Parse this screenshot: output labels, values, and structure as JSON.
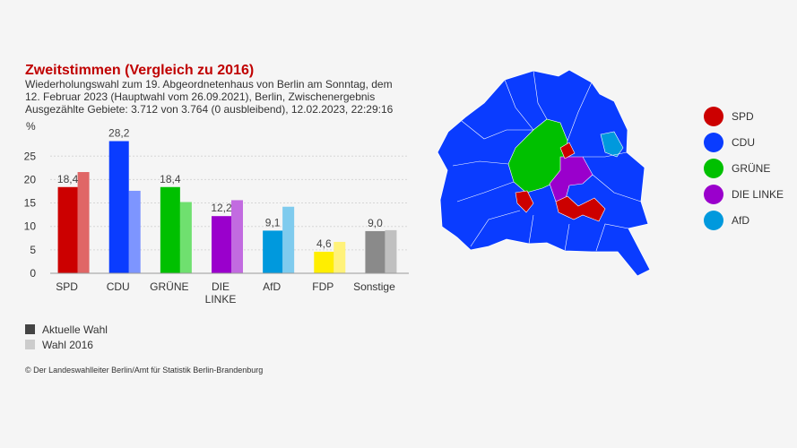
{
  "title": "Zweitstimmen (Vergleich zu 2016)",
  "subtitle_lines": [
    "Wiederholungswahl zum 19. Abgeordnetenhaus von Berlin am Sonntag, dem",
    "12. Februar 2023 (Hauptwahl vom 26.09.2021), Berlin, Zwischenergebnis",
    "Ausgezählte Gebiete: 3.712 von 3.764 (0 ausbleibend), 12.02.2023, 22:29:16"
  ],
  "chart_data": {
    "type": "bar",
    "ylabel": "%",
    "ylim": [
      0,
      30
    ],
    "yticks": [
      0,
      5,
      10,
      15,
      20,
      25
    ],
    "grid": true,
    "categories": [
      "SPD",
      "CDU",
      "GRÜNE",
      "DIE\nLINKE",
      "AfD",
      "FDP",
      "Sonstige"
    ],
    "series": [
      {
        "name": "Aktuelle Wahl",
        "values": [
          18.4,
          28.2,
          18.4,
          12.2,
          9.1,
          4.6,
          9.0
        ],
        "labels": [
          "18,4",
          "28,2",
          "18,4",
          "12,2",
          "9,1",
          "4,6",
          "9,0"
        ]
      },
      {
        "name": "Wahl 2016",
        "values": [
          21.6,
          17.6,
          15.2,
          15.6,
          14.2,
          6.7,
          9.2
        ]
      }
    ],
    "colors_current": [
      "#cc0000",
      "#0a3cff",
      "#00c000",
      "#9a00cc",
      "#0099dd",
      "#ffee00",
      "#8a8a8a"
    ],
    "colors_previous": [
      "#e06666",
      "#7d95ff",
      "#6fe06f",
      "#c26be0",
      "#7fcbee",
      "#fff27a",
      "#c0c0c0"
    ]
  },
  "legend": {
    "current_label": "Aktuelle Wahl",
    "previous_label": "Wahl 2016",
    "current_color": "#444444",
    "previous_color": "#cccccc"
  },
  "source": "© Der Landeswahlleiter Berlin/Amt für Statistik Berlin-Brandenburg",
  "map_legend": [
    {
      "label": "SPD",
      "color": "#cc0000"
    },
    {
      "label": "CDU",
      "color": "#0a3cff"
    },
    {
      "label": "GRÜNE",
      "color": "#00c000"
    },
    {
      "label": "DIE LINKE",
      "color": "#9a00cc"
    },
    {
      "label": "AfD",
      "color": "#0099dd"
    }
  ]
}
